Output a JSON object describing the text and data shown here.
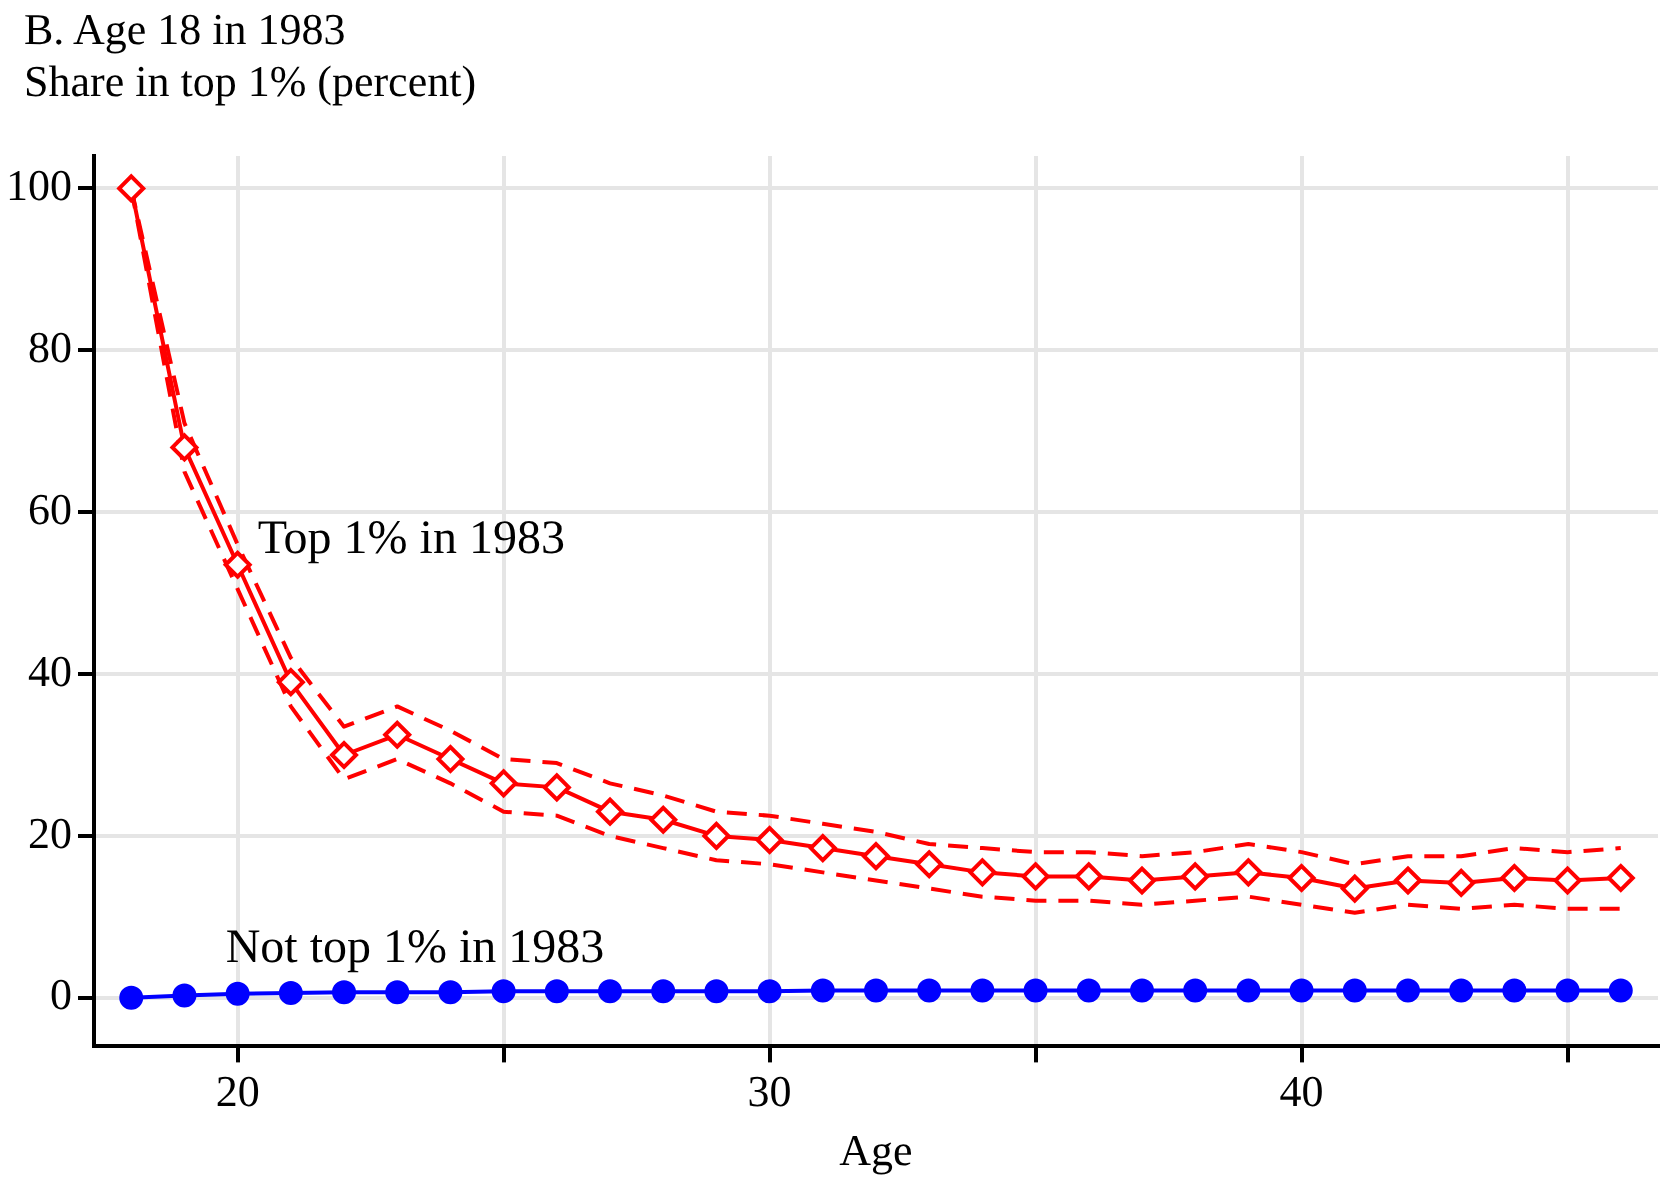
{
  "chart_data": {
    "type": "line",
    "title": "B. Age 18 in 1983",
    "ylabel": "Share in top 1% (percent)",
    "xlabel": "Age",
    "x": [
      18,
      19,
      20,
      21,
      22,
      23,
      24,
      25,
      26,
      27,
      28,
      29,
      30,
      31,
      32,
      33,
      34,
      35,
      36,
      37,
      38,
      39,
      40,
      41,
      42,
      43,
      44,
      45,
      46
    ],
    "series": [
      {
        "name": "Top 1% in 1983",
        "color": "#ff0000",
        "marker": "diamond",
        "line_style": "solid",
        "values": [
          100,
          68,
          53.5,
          39,
          30,
          32.5,
          29.5,
          26.5,
          26,
          23,
          22,
          20,
          19.5,
          18.5,
          17.5,
          16.5,
          15.5,
          15,
          15,
          14.5,
          15,
          15.5,
          14.8,
          13.5,
          14.5,
          14.2,
          14.8,
          14.5,
          14.8
        ]
      },
      {
        "color": "#ff0000",
        "marker": "none",
        "line_style": "dashed",
        "values": [
          100,
          65,
          50.5,
          36,
          27,
          29.5,
          26.5,
          23,
          22.5,
          20,
          18.5,
          17,
          16.5,
          15.5,
          14.5,
          13.5,
          12.5,
          12,
          12,
          11.5,
          12,
          12.5,
          11.5,
          10.5,
          11.5,
          11,
          11.5,
          11,
          11
        ]
      },
      {
        "color": "#ff0000",
        "marker": "none",
        "line_style": "dashed",
        "values": [
          100,
          71,
          56,
          42,
          33.5,
          36,
          33,
          29.5,
          29,
          26.5,
          25,
          23,
          22.5,
          21.5,
          20.5,
          19,
          18.5,
          18,
          18,
          17.5,
          18,
          19,
          18,
          16.5,
          17.5,
          17.5,
          18.5,
          18,
          18.5
        ]
      },
      {
        "name": "Not top 1% in 1983",
        "color": "#0000ff",
        "marker": "circle",
        "line_style": "solid",
        "values": [
          0,
          0.3,
          0.5,
          0.6,
          0.7,
          0.7,
          0.7,
          0.8,
          0.8,
          0.8,
          0.8,
          0.8,
          0.8,
          0.9,
          0.9,
          0.9,
          0.9,
          0.9,
          0.9,
          0.9,
          0.9,
          0.9,
          0.9,
          0.9,
          0.9,
          0.9,
          0.9,
          0.9,
          0.9
        ]
      }
    ],
    "xlim": [
      17.3,
      46.7
    ],
    "xticks": [
      20,
      {
        "value": 25,
        "label": null
      },
      30,
      {
        "value": 35,
        "label": null
      },
      40,
      {
        "value": 45,
        "label": null
      }
    ],
    "ylim": [
      -6,
      104
    ],
    "yticks": [
      0,
      20,
      40,
      60,
      80,
      100
    ],
    "grid": true,
    "legend": false
  }
}
